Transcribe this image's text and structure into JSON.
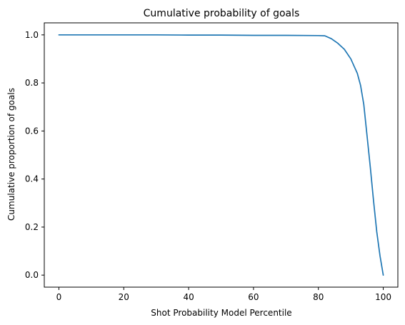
{
  "chart_data": {
    "type": "line",
    "title": "Cumulative probability of goals",
    "xlabel": "Shot Probability Model Percentile",
    "ylabel": "Cumulative proportion of goals",
    "xlim": [
      -4.5,
      104.5
    ],
    "ylim": [
      -0.05,
      1.05
    ],
    "xticks": [
      0,
      20,
      40,
      60,
      80,
      100
    ],
    "xtick_labels": [
      "0",
      "20",
      "40",
      "60",
      "80",
      "100"
    ],
    "yticks": [
      0.0,
      0.2,
      0.4,
      0.6,
      0.8,
      1.0
    ],
    "ytick_labels": [
      "0.0",
      "0.2",
      "0.4",
      "0.6",
      "0.8",
      "1.0"
    ],
    "grid": false,
    "series": [
      {
        "color": "#1f77b4",
        "x": [
          0,
          10,
          20,
          30,
          40,
          50,
          60,
          70,
          80,
          82,
          84,
          86,
          88,
          90,
          91,
          92,
          93,
          94,
          95,
          96,
          97,
          98,
          99,
          100
        ],
        "y": [
          1.0,
          1.0,
          1.0,
          1.0,
          0.999,
          0.999,
          0.998,
          0.998,
          0.997,
          0.996,
          0.984,
          0.965,
          0.94,
          0.9,
          0.87,
          0.84,
          0.79,
          0.71,
          0.58,
          0.45,
          0.31,
          0.18,
          0.08,
          0.0
        ]
      }
    ]
  }
}
